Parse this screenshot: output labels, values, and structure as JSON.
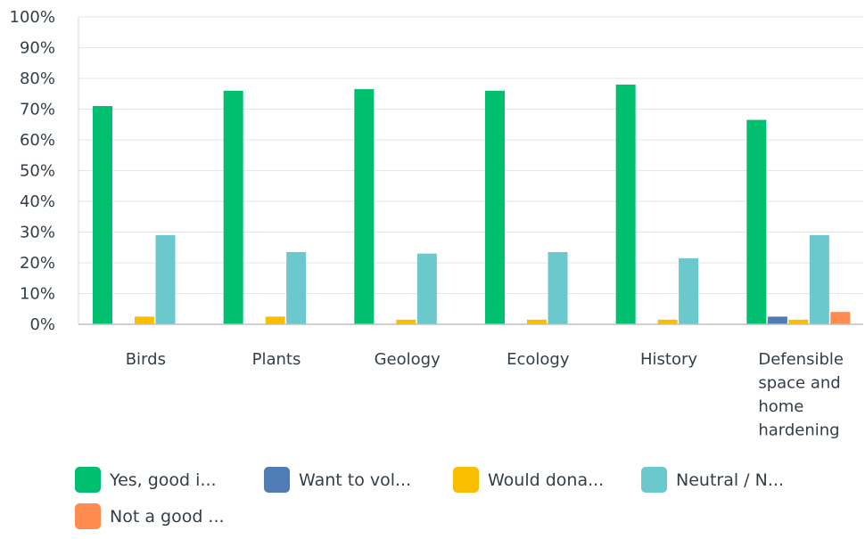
{
  "chart_data": {
    "type": "bar",
    "categories": [
      "Birds",
      "Plants",
      "Geology",
      "Ecology",
      "History",
      "Defensible space and home hardening"
    ],
    "category_lines": [
      [
        "Birds"
      ],
      [
        "Plants"
      ],
      [
        "Geology"
      ],
      [
        "Ecology"
      ],
      [
        "History"
      ],
      [
        "Defensible",
        "space and",
        "home",
        "hardening"
      ]
    ],
    "series": [
      {
        "name": "Yes, good i...",
        "color": "#00bf6f",
        "values": [
          71,
          76,
          76.5,
          76,
          78,
          66.5
        ]
      },
      {
        "name": "Want to vol...",
        "color": "#507cb6",
        "values": [
          0,
          0,
          0,
          0,
          0,
          2.5
        ]
      },
      {
        "name": "Would dona...",
        "color": "#f9be00",
        "values": [
          2.5,
          2.5,
          1.5,
          1.5,
          1.5,
          1.5
        ]
      },
      {
        "name": "Neutral / N...",
        "color": "#6bc8cd",
        "values": [
          29,
          23.5,
          23,
          23.5,
          21.5,
          29
        ]
      },
      {
        "name": "Not a good ...",
        "color": "#ff8b4f",
        "values": [
          0,
          0,
          0,
          0,
          0,
          4
        ]
      }
    ],
    "ylim": [
      0,
      100
    ],
    "yticks": [
      "0%",
      "10%",
      "20%",
      "30%",
      "40%",
      "50%",
      "60%",
      "70%",
      "80%",
      "90%",
      "100%"
    ],
    "grid": true,
    "legend_position": "bottom"
  }
}
